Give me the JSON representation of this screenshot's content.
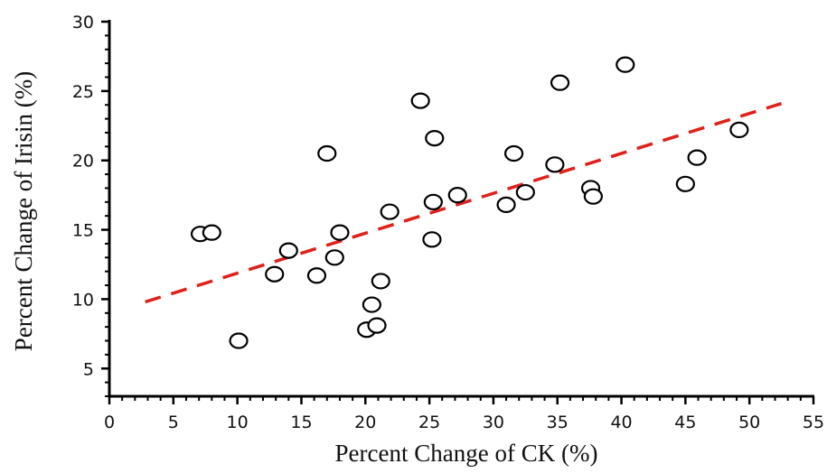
{
  "chart_data": {
    "type": "scatter",
    "xlabel": "Percent Change of CK (%)",
    "ylabel": "Percent Change of Irisin (%)",
    "xlim": [
      0,
      55
    ],
    "ylim": [
      3,
      30
    ],
    "x_ticks": [
      0,
      5,
      10,
      15,
      20,
      25,
      30,
      35,
      40,
      45,
      50,
      55
    ],
    "y_ticks": [
      5,
      10,
      15,
      20,
      25,
      30
    ],
    "x_tick_labels": [
      "0",
      "5",
      "10",
      "15",
      "20",
      "25",
      "30",
      "35",
      "40",
      "45",
      "50",
      "55"
    ],
    "y_tick_labels": [
      "5",
      "10",
      "15",
      "20",
      "25",
      "30"
    ],
    "grid": false,
    "points": [
      {
        "x": 7.1,
        "y": 14.7
      },
      {
        "x": 8.0,
        "y": 14.8
      },
      {
        "x": 10.1,
        "y": 7.0
      },
      {
        "x": 12.9,
        "y": 11.8
      },
      {
        "x": 14.0,
        "y": 13.5
      },
      {
        "x": 16.2,
        "y": 11.7
      },
      {
        "x": 17.0,
        "y": 20.5
      },
      {
        "x": 17.6,
        "y": 13.0
      },
      {
        "x": 18.0,
        "y": 14.8
      },
      {
        "x": 20.1,
        "y": 7.8
      },
      {
        "x": 20.5,
        "y": 9.6
      },
      {
        "x": 20.9,
        "y": 8.1
      },
      {
        "x": 21.2,
        "y": 11.3
      },
      {
        "x": 21.9,
        "y": 16.3
      },
      {
        "x": 24.3,
        "y": 24.3
      },
      {
        "x": 25.2,
        "y": 14.3
      },
      {
        "x": 25.3,
        "y": 17.0
      },
      {
        "x": 25.4,
        "y": 21.6
      },
      {
        "x": 27.2,
        "y": 17.5
      },
      {
        "x": 31.0,
        "y": 16.8
      },
      {
        "x": 31.6,
        "y": 20.5
      },
      {
        "x": 32.5,
        "y": 17.7
      },
      {
        "x": 34.8,
        "y": 19.7
      },
      {
        "x": 35.2,
        "y": 25.6
      },
      {
        "x": 37.6,
        "y": 18.0
      },
      {
        "x": 37.8,
        "y": 17.4
      },
      {
        "x": 40.3,
        "y": 26.9
      },
      {
        "x": 45.0,
        "y": 18.3
      },
      {
        "x": 45.9,
        "y": 20.2
      },
      {
        "x": 49.2,
        "y": 22.2
      }
    ],
    "trend_line": {
      "style": "dashed",
      "color": "#e0201a",
      "x": [
        2.8,
        52.5
      ],
      "y": [
        9.8,
        24.1
      ]
    }
  }
}
